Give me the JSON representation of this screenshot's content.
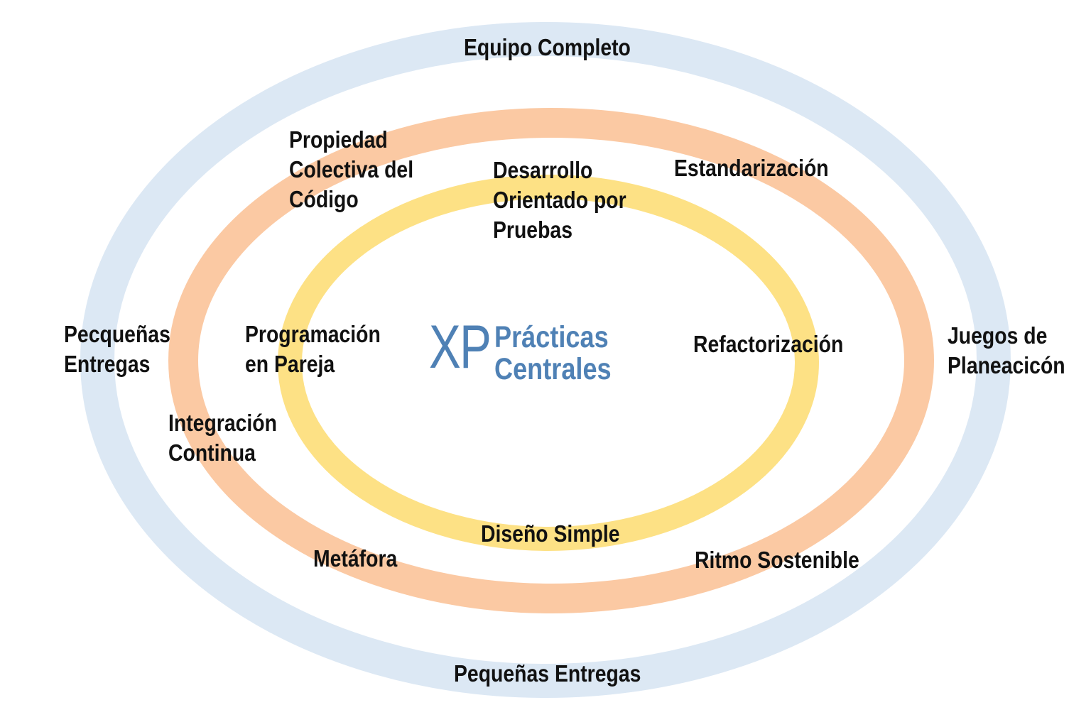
{
  "diagram": {
    "center": {
      "logo": "XP",
      "title_line1": "Prácticas",
      "title_line2": "Centrales"
    },
    "rings": {
      "outer_color": "#dce8f4",
      "middle_color": "#fbc9a3",
      "inner_color": "#fde185"
    },
    "labels": {
      "equipo_completo": "Equipo Completo",
      "propiedad_colectiva": [
        "Propiedad",
        "Colectiva del",
        "Código"
      ],
      "desarrollo_orientado": [
        "Desarrollo",
        "Orientado por",
        "Pruebas"
      ],
      "estandarizacion": "Estandarización",
      "pecquenas_entregas_left": [
        "Pecqueñas",
        "Entregas"
      ],
      "programacion_pareja": [
        "Programación",
        "en Pareja"
      ],
      "refactorizacion": "Refactorización",
      "juegos_planeacion": [
        "Juegos de",
        "Planeacicón"
      ],
      "integracion_continua": [
        "Integración",
        "Continua"
      ],
      "diseno_simple": "Diseño Simple",
      "metafora": "Metáfora",
      "ritmo_sostenible": "Ritmo Sostenible",
      "pequenas_entregas_bottom": "Pequeñas Entregas"
    }
  }
}
